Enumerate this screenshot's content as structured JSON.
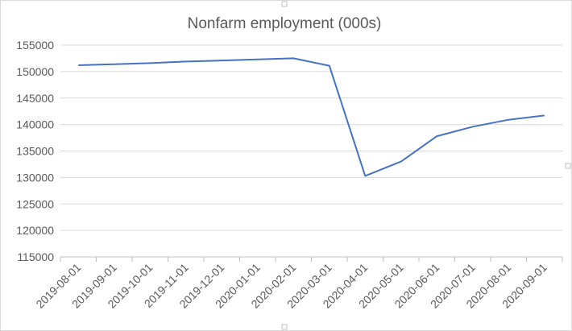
{
  "chart_data": {
    "type": "line",
    "title": "Nonfarm employment (000s)",
    "xlabel": "",
    "ylabel": "",
    "categories": [
      "2019-08-01",
      "2019-09-01",
      "2019-10-01",
      "2019-11-01",
      "2019-12-01",
      "2020-01-01",
      "2020-02-01",
      "2020-03-01",
      "2020-04-01",
      "2020-05-01",
      "2020-06-01",
      "2020-07-01",
      "2020-08-01",
      "2020-09-01"
    ],
    "series": [
      {
        "values": [
          151200,
          151400,
          151600,
          151900,
          152100,
          152300,
          152500,
          151100,
          130300,
          133000,
          137800,
          139600,
          140900,
          141700
        ],
        "color": "#4472c4"
      }
    ],
    "ylim": [
      115000,
      155000
    ],
    "yticks": [
      115000,
      120000,
      125000,
      130000,
      135000,
      140000,
      145000,
      150000,
      155000
    ],
    "grid": true,
    "legend": "none"
  }
}
